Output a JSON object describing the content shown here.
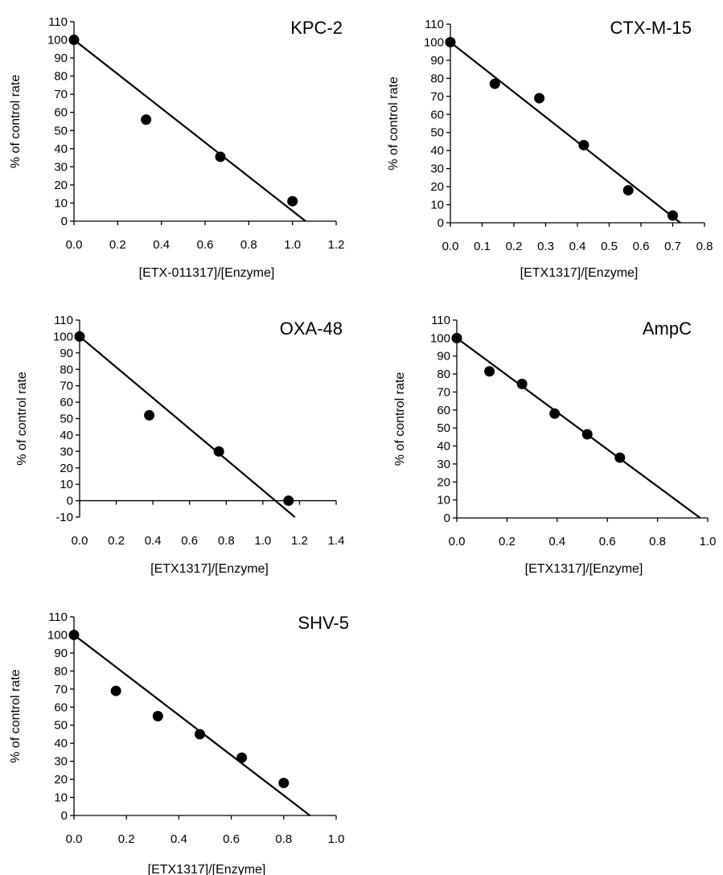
{
  "chart_data": [
    {
      "type": "scatter",
      "title": "KPC-2",
      "xlabel": "[ETX-011317]/[Enzyme]",
      "ylabel": "% of control rate",
      "xlim": [
        0,
        1.2
      ],
      "ylim": [
        0,
        110
      ],
      "xticks": [
        "0.0",
        "0.2",
        "0.4",
        "0.6",
        "0.8",
        "1.0",
        "1.2"
      ],
      "yticks": [
        "0",
        "10",
        "20",
        "30",
        "40",
        "50",
        "60",
        "70",
        "80",
        "90",
        "100",
        "110"
      ],
      "points": [
        [
          0,
          100
        ],
        [
          0.33,
          56
        ],
        [
          0.67,
          35.5
        ],
        [
          1.0,
          11
        ]
      ],
      "fit_line": [
        [
          0,
          100
        ],
        [
          1.06,
          0
        ]
      ],
      "grid": false,
      "legend": "none"
    },
    {
      "type": "scatter",
      "title": "CTX-M-15",
      "xlabel": "[ETX1317]/[Enzyme]",
      "ylabel": "% of control rate",
      "xlim": [
        0,
        0.8
      ],
      "ylim": [
        0,
        110
      ],
      "xticks": [
        "0.0",
        "0.1",
        "0.2",
        "0.3",
        "0.4",
        "0.5",
        "0.6",
        "0.7",
        "0.8"
      ],
      "yticks": [
        "0",
        "10",
        "20",
        "30",
        "40",
        "50",
        "60",
        "70",
        "80",
        "90",
        "100",
        "110"
      ],
      "points": [
        [
          0,
          100
        ],
        [
          0.14,
          77
        ],
        [
          0.28,
          69
        ],
        [
          0.42,
          43
        ],
        [
          0.56,
          18
        ],
        [
          0.7,
          4
        ]
      ],
      "fit_line": [
        [
          0,
          100
        ],
        [
          0.724,
          0
        ]
      ],
      "grid": false,
      "legend": "none"
    },
    {
      "type": "scatter",
      "title": "OXA-48",
      "xlabel": "[ETX1317]/[Enzyme]",
      "ylabel": "% of control rate",
      "xlim": [
        0,
        1.4
      ],
      "ylim": [
        -10,
        110
      ],
      "xticks": [
        "0.0",
        "0.2",
        "0.4",
        "0.6",
        "0.8",
        "1.0",
        "1.2",
        "1.4"
      ],
      "yticks": [
        "-10",
        "0",
        "10",
        "20",
        "30",
        "40",
        "50",
        "60",
        "70",
        "80",
        "90",
        "100",
        "110"
      ],
      "points": [
        [
          0,
          100
        ],
        [
          0.38,
          52
        ],
        [
          0.76,
          30
        ],
        [
          1.14,
          0
        ]
      ],
      "fit_line": [
        [
          0,
          100
        ],
        [
          1.175,
          -10
        ]
      ],
      "grid": false,
      "legend": "none"
    },
    {
      "type": "scatter",
      "title": "AmpC",
      "xlabel": "[ETX1317]/[Enzyme]",
      "ylabel": "% of control rate",
      "xlim": [
        0,
        1.0
      ],
      "ylim": [
        0,
        110
      ],
      "xticks": [
        "0.0",
        "0.2",
        "0.4",
        "0.6",
        "0.8",
        "1.0"
      ],
      "yticks": [
        "0",
        "10",
        "20",
        "30",
        "40",
        "50",
        "60",
        "70",
        "80",
        "90",
        "100",
        "110"
      ],
      "points": [
        [
          0,
          100
        ],
        [
          0.13,
          81.5
        ],
        [
          0.26,
          74.5
        ],
        [
          0.39,
          58
        ],
        [
          0.52,
          46.5
        ],
        [
          0.65,
          33.5
        ]
      ],
      "fit_line": [
        [
          0,
          100
        ],
        [
          0.97,
          0
        ]
      ],
      "grid": false,
      "legend": "none"
    },
    {
      "type": "scatter",
      "title": "SHV-5",
      "xlabel": "[ETX1317]/[Enzyme]",
      "ylabel": "% of control rate",
      "xlim": [
        0,
        1.0
      ],
      "ylim": [
        0,
        110
      ],
      "xticks": [
        "0.0",
        "0.2",
        "0.4",
        "0.6",
        "0.8",
        "1.0"
      ],
      "yticks": [
        "0",
        "10",
        "20",
        "30",
        "40",
        "50",
        "60",
        "70",
        "80",
        "90",
        "100",
        "110"
      ],
      "points": [
        [
          0,
          100
        ],
        [
          0.16,
          69
        ],
        [
          0.32,
          55
        ],
        [
          0.48,
          45
        ],
        [
          0.64,
          32
        ],
        [
          0.8,
          18
        ]
      ],
      "fit_line": [
        [
          0,
          100
        ],
        [
          0.9,
          0
        ]
      ],
      "grid": false,
      "legend": "none"
    }
  ]
}
